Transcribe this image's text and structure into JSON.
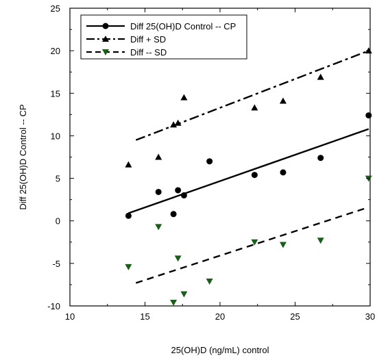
{
  "chart_data": {
    "type": "scatter",
    "xlabel": "25(OH)D (ng/mL) control",
    "ylabel": "Diff 25(OH)D Control -- CP",
    "xlim": [
      10,
      30
    ],
    "ylim": [
      -10,
      25
    ],
    "x_ticks": [
      10,
      15,
      20,
      25,
      30
    ],
    "y_ticks": [
      -10,
      -5,
      0,
      5,
      10,
      15,
      20,
      25
    ],
    "grid": false,
    "legend_position": "top-left",
    "series": [
      {
        "name": "Diff 25(OH)D Control -- CP",
        "marker": "circle",
        "line": "solid",
        "color": "#000000",
        "points": [
          [
            13.9,
            0.6
          ],
          [
            15.9,
            3.4
          ],
          [
            16.9,
            0.8
          ],
          [
            17.2,
            3.6
          ],
          [
            17.6,
            3.0
          ],
          [
            19.3,
            7.0
          ],
          [
            22.3,
            5.4
          ],
          [
            24.2,
            5.7
          ],
          [
            26.7,
            7.4
          ],
          [
            29.9,
            12.4
          ]
        ],
        "fit": [
          [
            13.9,
            0.9
          ],
          [
            29.9,
            10.8
          ]
        ]
      },
      {
        "name": "Diff + SD",
        "marker": "triangle-up",
        "line": "dash-dot",
        "color": "#000000",
        "points": [
          [
            13.9,
            6.6
          ],
          [
            15.9,
            7.5
          ],
          [
            16.9,
            11.3
          ],
          [
            17.2,
            11.5
          ],
          [
            17.6,
            14.5
          ],
          [
            22.3,
            13.3
          ],
          [
            24.2,
            14.1
          ],
          [
            26.7,
            16.9
          ],
          [
            29.9,
            20.0
          ]
        ],
        "fit": [
          [
            14.4,
            9.5
          ],
          [
            29.9,
            20.0
          ]
        ]
      },
      {
        "name": "Diff -- SD",
        "marker": "triangle-down",
        "line": "dashed",
        "color": "#1a5e1a",
        "points": [
          [
            13.9,
            -5.4
          ],
          [
            15.9,
            -0.7
          ],
          [
            16.9,
            -9.6
          ],
          [
            17.2,
            -4.4
          ],
          [
            17.6,
            -8.6
          ],
          [
            19.3,
            -7.1
          ],
          [
            22.3,
            -2.5
          ],
          [
            24.2,
            -2.8
          ],
          [
            26.7,
            -2.3
          ],
          [
            29.9,
            5.0
          ]
        ],
        "fit": [
          [
            14.4,
            -7.3
          ],
          [
            29.9,
            1.6
          ]
        ]
      }
    ]
  }
}
